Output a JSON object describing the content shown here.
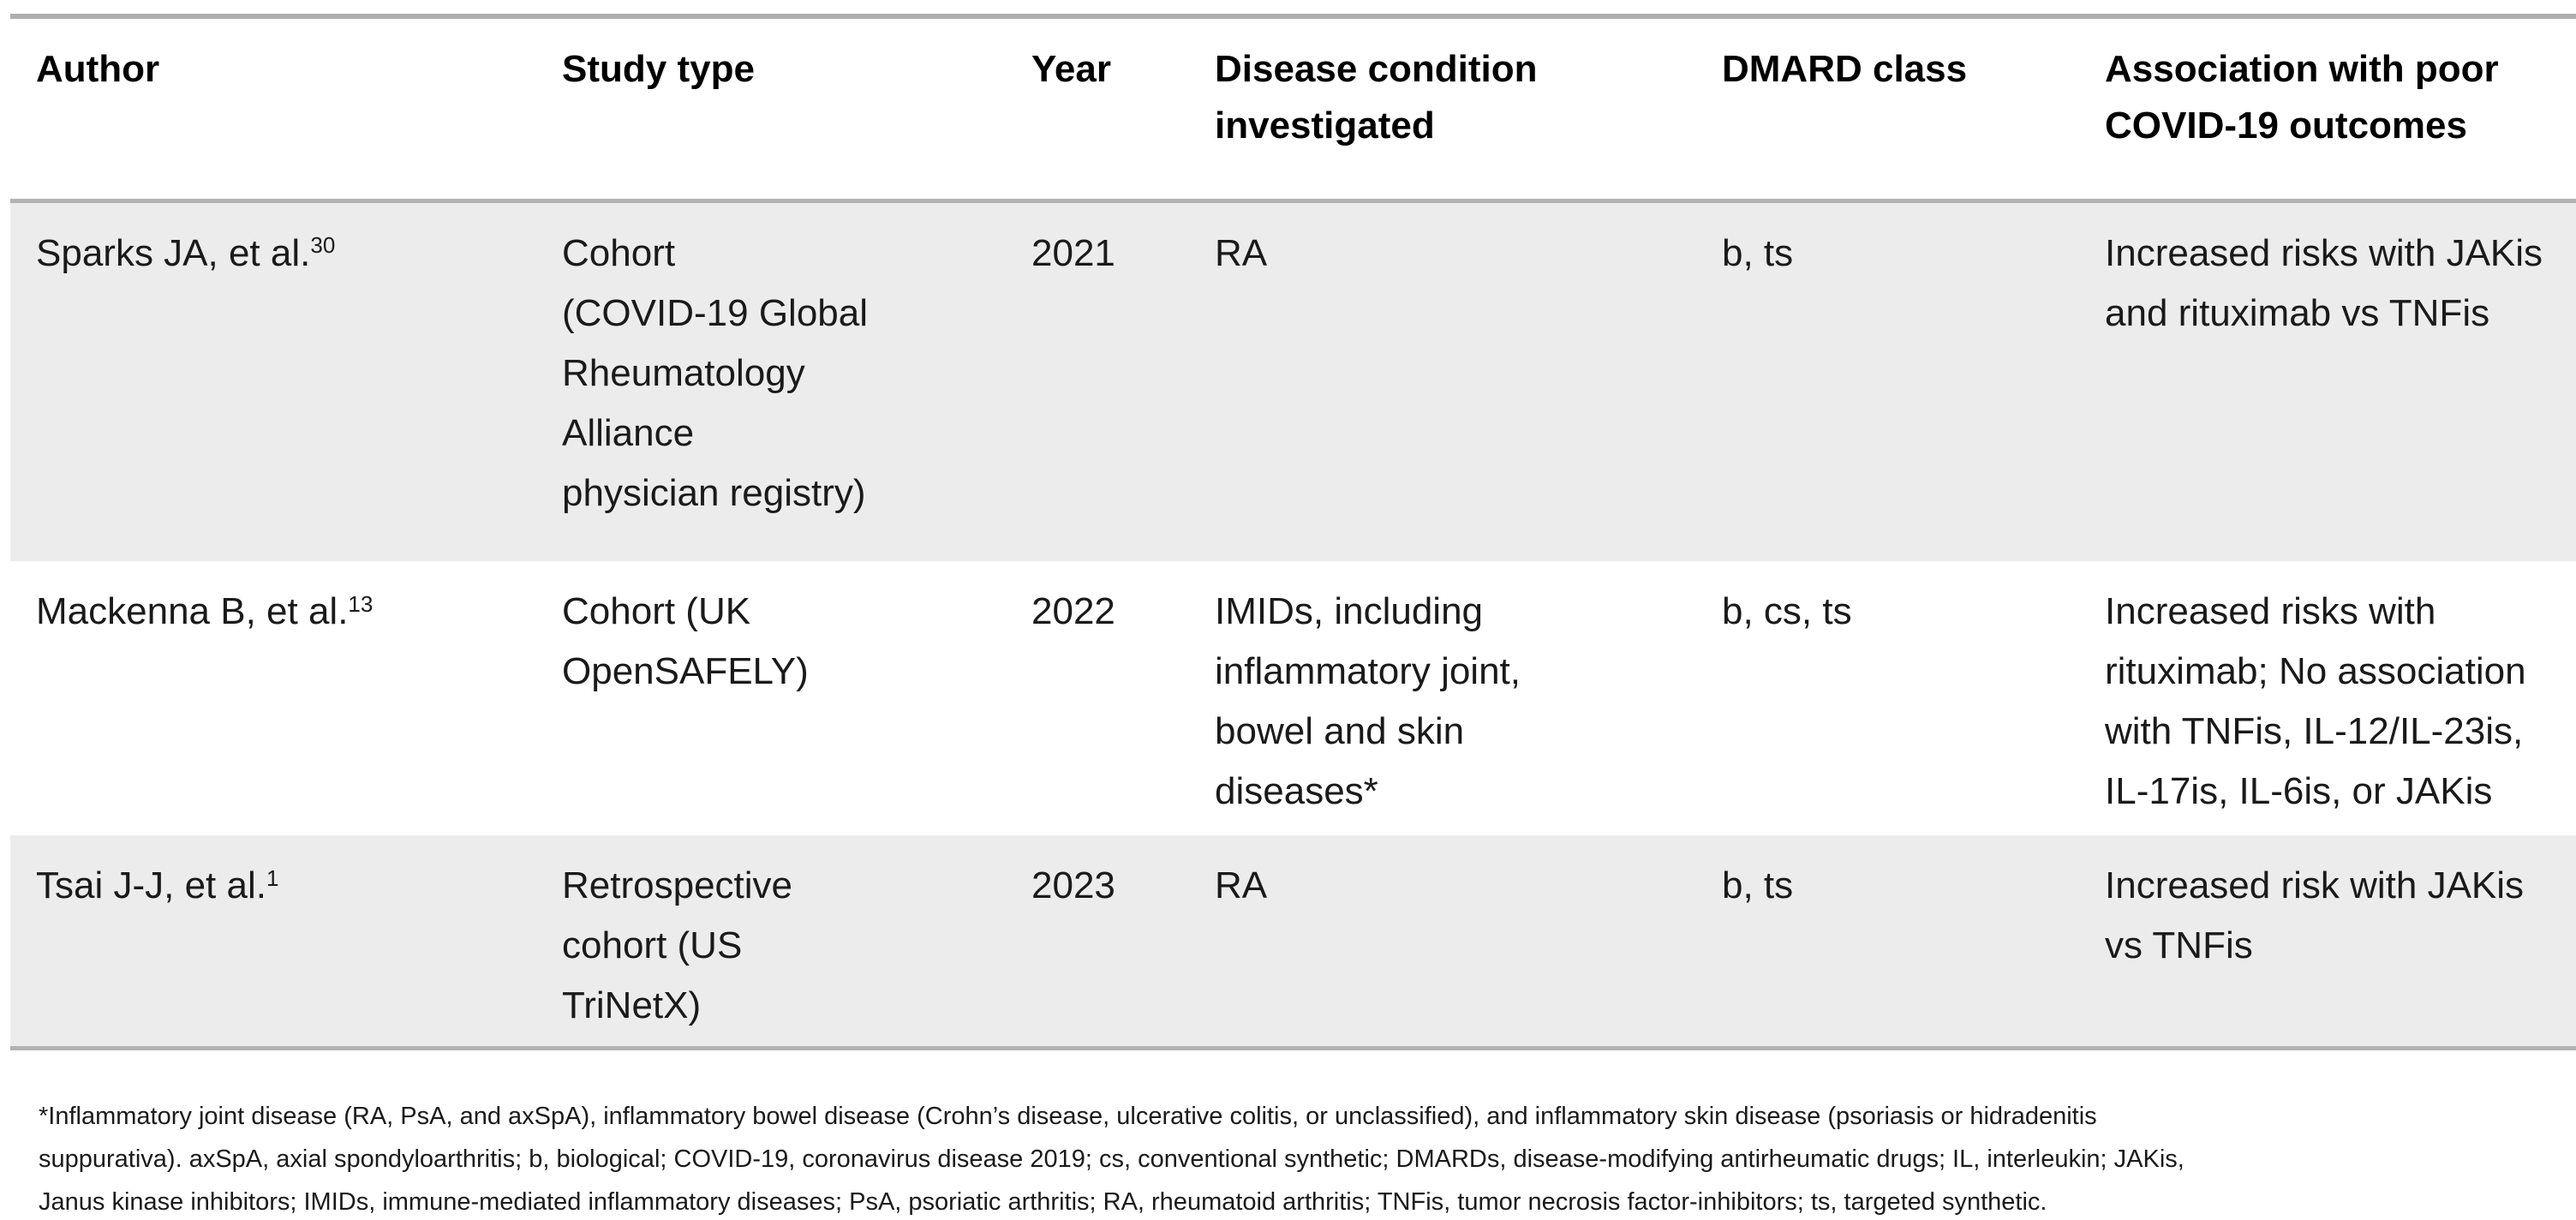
{
  "table": {
    "header": {
      "author": "Author",
      "study_type": "Study type",
      "year": "Year",
      "disease": "Disease condition\ninvestigated",
      "dmard": "DMARD class",
      "association": "Association with poor\nCOVID-19 outcomes"
    },
    "rows": [
      {
        "author": "Sparks JA, et al.",
        "author_ref": "30",
        "study_type": "Cohort\n(COVID-19 Global\nRheumatology\nAlliance\nphysician registry)",
        "year": "2021",
        "disease": "RA",
        "dmard": "b, ts",
        "association": "Increased risks with JAKis\nand rituximab vs TNFis"
      },
      {
        "author": "Mackenna B, et al.",
        "author_ref": "13",
        "study_type": "Cohort (UK\nOpenSAFELY)",
        "year": "2022",
        "disease": "IMIDs, including\ninflammatory joint,\nbowel and skin\ndiseases*",
        "dmard": "b, cs, ts",
        "association": "Increased risks with\nrituximab; No association\nwith TNFis, IL-12/IL-23is,\nIL-17is, IL-6is, or JAKis"
      },
      {
        "author": "Tsai J-J, et al.",
        "author_ref": "1",
        "study_type": "Retrospective\ncohort (US\nTriNetX)",
        "year": "2023",
        "disease": "RA",
        "dmard": "b, ts",
        "association": "Increased risk with JAKis\nvs TNFis"
      }
    ]
  },
  "footnote": {
    "lines": [
      "*Inflammatory joint disease (RA, PsA, and axSpA), inflammatory bowel disease (Crohn’s disease, ulcerative colitis, or unclassified), and inflammatory skin disease (psoriasis or hidradenitis",
      "suppurativa). axSpA, axial spondyloarthritis; b, biological; COVID-19, coronavirus disease 2019; cs, conventional synthetic; DMARDs, disease-modifying antirheumatic drugs; IL, interleukin; JAKis,",
      "Janus kinase inhibitors; IMIDs, immune-mediated inflammatory diseases; PsA, psoriatic arthritis; RA, rheumatoid arthritis; TNFis, tumor necrosis factor-inhibitors; ts, targeted synthetic."
    ]
  },
  "colors": {
    "row_stripe": "#ececec",
    "rule_gray": "#b3b3b3",
    "text": "#1a1a1a"
  }
}
